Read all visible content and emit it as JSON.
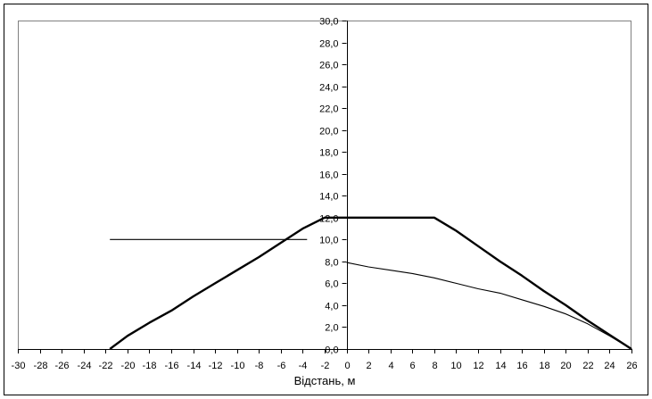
{
  "chart_data": {
    "type": "line",
    "xlabel": "Відстань,  м",
    "ylabel": "",
    "xlim": [
      -30,
      26
    ],
    "ylim": [
      0,
      30
    ],
    "x_ticks": [
      -30,
      -28,
      -26,
      -24,
      -22,
      -20,
      -18,
      -16,
      -14,
      -12,
      -10,
      -8,
      -6,
      -4,
      -2,
      0,
      2,
      4,
      6,
      8,
      10,
      12,
      14,
      16,
      18,
      20,
      22,
      24,
      26
    ],
    "x_tick_labels": [
      "-30",
      "-28",
      "-26",
      "-24",
      "-22",
      "-20",
      "-18",
      "-16",
      "-14",
      "-12",
      "-10",
      "-8",
      "-6",
      "-4",
      "-2",
      "0",
      "2",
      "4",
      "6",
      "8",
      "10",
      "12",
      "14",
      "16",
      "18",
      "20",
      "22",
      "24",
      "26"
    ],
    "y_ticks": [
      0,
      2,
      4,
      6,
      8,
      10,
      12,
      14,
      16,
      18,
      20,
      22,
      24,
      26,
      28,
      30
    ],
    "y_tick_labels": [
      "0,0",
      "2,0",
      "4,0",
      "6,0",
      "8,0",
      "10,0",
      "12,0",
      "14,0",
      "16,0",
      "18,0",
      "20,0",
      "22,0",
      "24,0",
      "26,0",
      "28,0",
      "30,0"
    ],
    "grid": false,
    "series": [
      {
        "color": "#000000",
        "width": "thick",
        "points": [
          [
            -21.6,
            0
          ],
          [
            -20,
            1.2
          ],
          [
            -18,
            2.4
          ],
          [
            -16,
            3.5
          ],
          [
            -14,
            4.8
          ],
          [
            -12,
            6.0
          ],
          [
            -10,
            7.2
          ],
          [
            -8,
            8.4
          ],
          [
            -6,
            9.7
          ],
          [
            -4,
            11.0
          ],
          [
            -2,
            12.0
          ],
          [
            0,
            12.0
          ],
          [
            2,
            12.0
          ],
          [
            4,
            12.0
          ],
          [
            6,
            12.0
          ],
          [
            8,
            12.0
          ],
          [
            10,
            10.8
          ],
          [
            12,
            9.4
          ],
          [
            14,
            8.0
          ],
          [
            16,
            6.7
          ],
          [
            18,
            5.3
          ],
          [
            20,
            4.0
          ],
          [
            22,
            2.6
          ],
          [
            24,
            1.3
          ],
          [
            26,
            0
          ]
        ]
      },
      {
        "color": "#000000",
        "width": "thin",
        "points": [
          [
            -21.6,
            10.0
          ],
          [
            -3.6,
            10.0
          ]
        ]
      },
      {
        "color": "#000000",
        "width": "thin",
        "points": [
          [
            0,
            7.9
          ],
          [
            2,
            7.5
          ],
          [
            4,
            7.2
          ],
          [
            6,
            6.9
          ],
          [
            8,
            6.5
          ],
          [
            10,
            6.0
          ],
          [
            12,
            5.5
          ],
          [
            14,
            5.1
          ],
          [
            16,
            4.5
          ],
          [
            18,
            3.9
          ],
          [
            20,
            3.2
          ],
          [
            22,
            2.3
          ],
          [
            24,
            1.2
          ],
          [
            26,
            0
          ]
        ]
      }
    ]
  }
}
